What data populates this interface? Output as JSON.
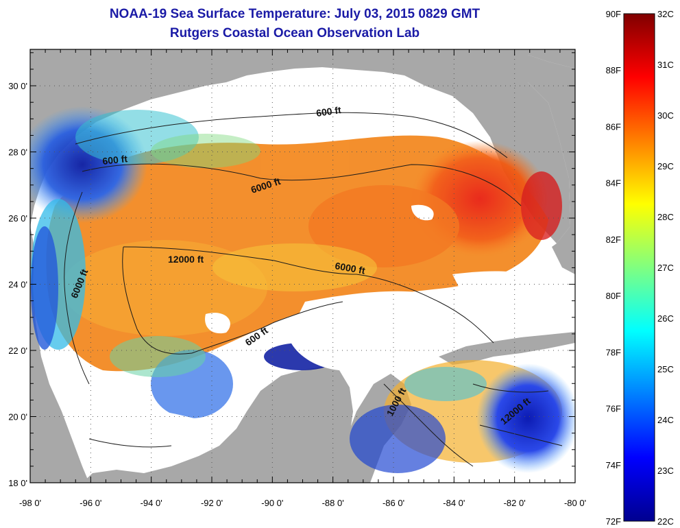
{
  "header": {
    "title": "NOAA-19 Sea Surface Temperature:  July 03, 2015 0829 GMT",
    "subtitle": "Rutgers Coastal Ocean Observation Lab"
  },
  "map": {
    "x_ticks": [
      "-98 0'",
      "-96 0'",
      "-94 0'",
      "-92 0'",
      "-90 0'",
      "-88 0'",
      "-86 0'",
      "-84 0'",
      "-82 0'",
      "-80 0'"
    ],
    "y_ticks": [
      "30 0'",
      "28 0'",
      "26 0'",
      "24 0'",
      "22 0'",
      "20 0'",
      "18 0'"
    ],
    "contour_labels": [
      "600 ft",
      "600 ft",
      "6000 ft",
      "12000 ft",
      "6000 ft",
      "6000 ft",
      "600 ft",
      "1000 ft",
      "12000 ft"
    ],
    "colors": {
      "land": "#a8a8a8",
      "cloud": "#ffffff",
      "grid": "#555555"
    }
  },
  "colorbar": {
    "f_labels": [
      "90F",
      "88F",
      "86F",
      "84F",
      "82F",
      "80F",
      "78F",
      "76F",
      "74F",
      "72F"
    ],
    "c_labels": [
      "32C",
      "31C",
      "30C",
      "29C",
      "28C",
      "27C",
      "26C",
      "25C",
      "24C",
      "23C",
      "22C"
    ],
    "colors": [
      "#00008f",
      "#0000ff",
      "#0080ff",
      "#00ffff",
      "#80ff80",
      "#ffff00",
      "#ff8000",
      "#ff0000",
      "#800000"
    ]
  }
}
